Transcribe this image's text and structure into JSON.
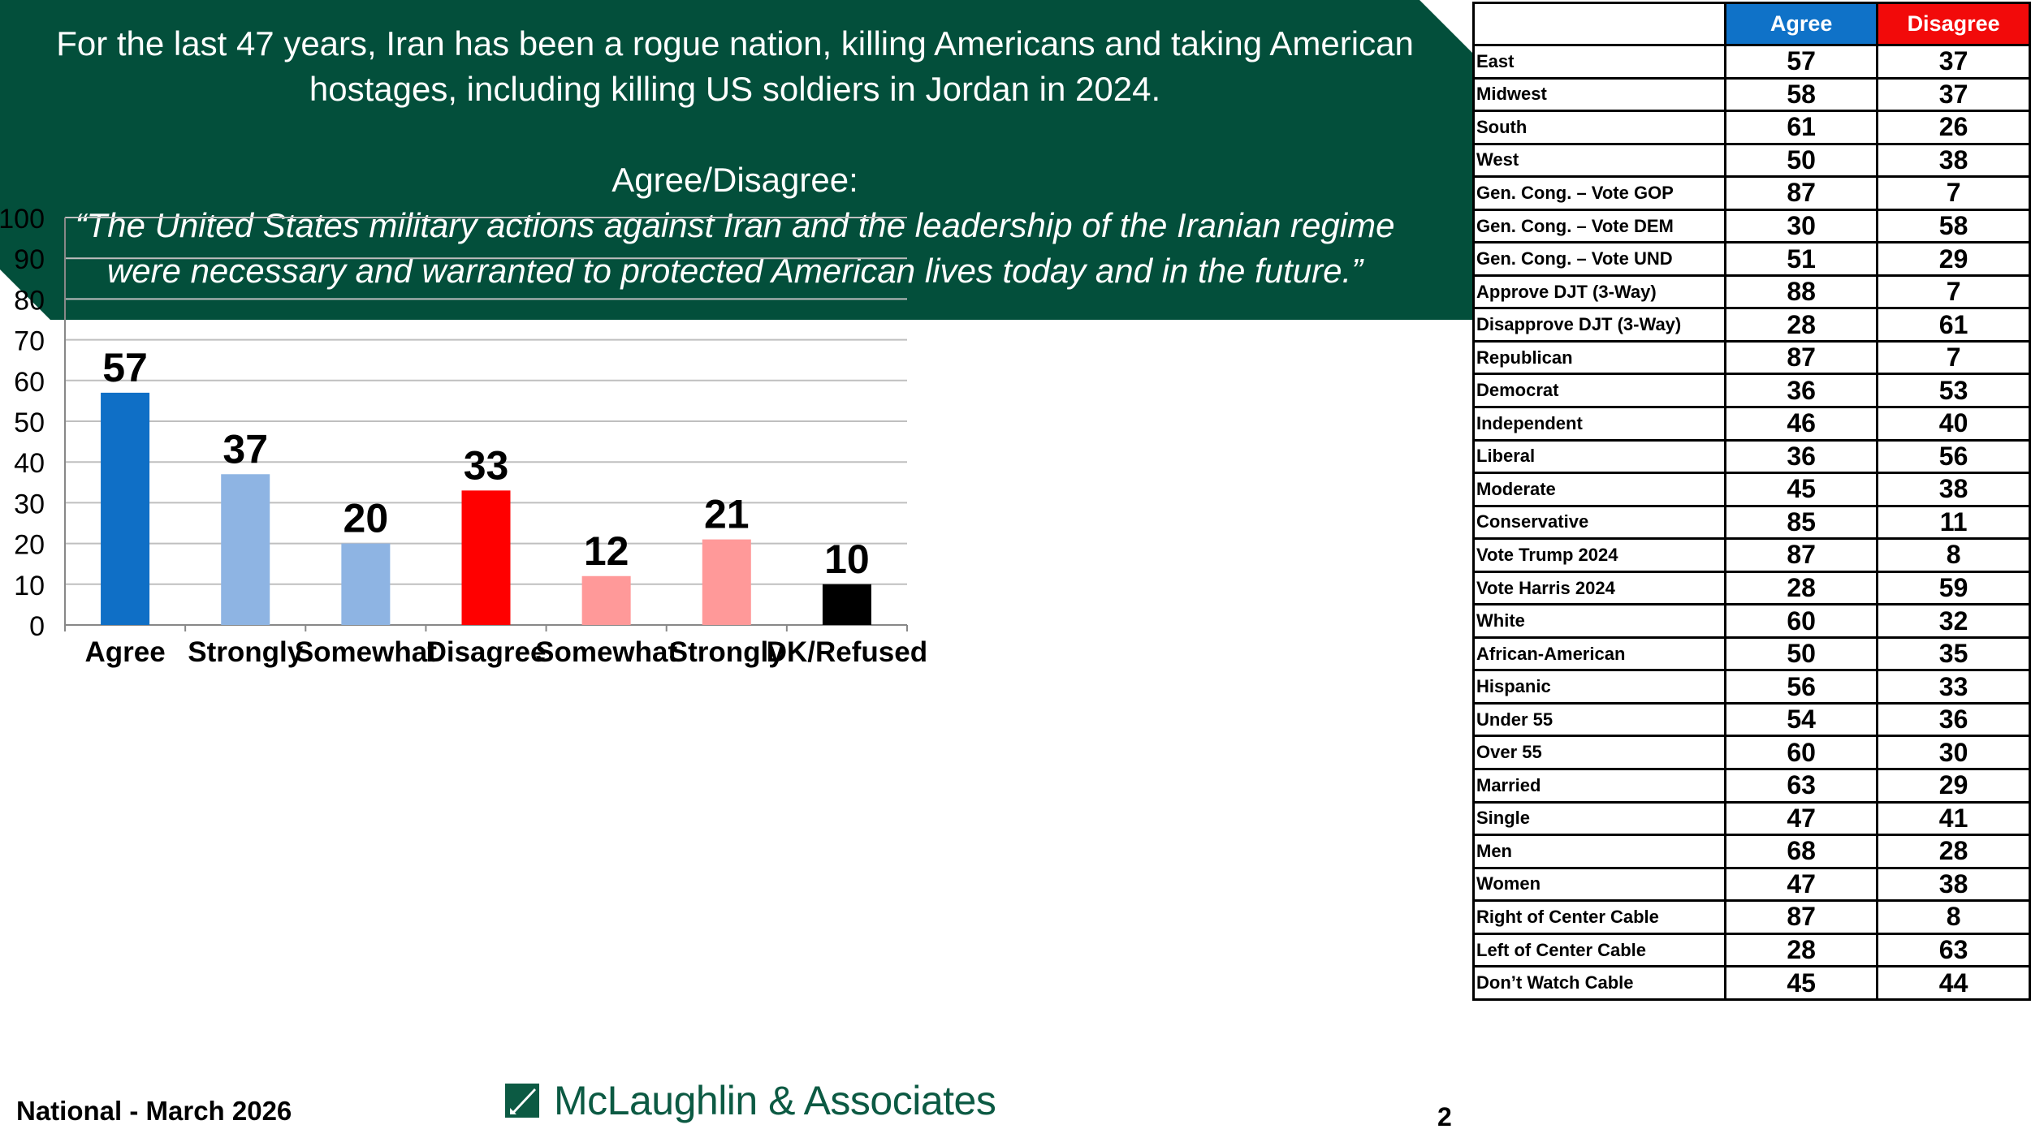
{
  "banner": {
    "line1": "For the last 47 years, Iran has been a rogue nation, killing Americans and taking American",
    "line2": "hostages, including killing US soldiers in Jordan in 2024.",
    "question_label": "Agree/Disagree:",
    "quote1": "“The United States military actions against Iran and the leadership of the Iranian regime",
    "quote2": "were necessary and warranted to protected American lives today and in the future.”"
  },
  "chart_data": {
    "type": "bar",
    "categories": [
      "Agree",
      "Strongly",
      "Somewhat",
      "Disagree",
      "Somewhat",
      "Strongly",
      "DK/Refused"
    ],
    "values": [
      57,
      37,
      20,
      33,
      12,
      21,
      10
    ],
    "colors": [
      "#0f6fc6",
      "#8eb4e3",
      "#8eb4e3",
      "#ff0000",
      "#ff9999",
      "#ff9999",
      "#000000"
    ],
    "ylim": [
      0,
      100
    ],
    "yticks": [
      0,
      10,
      20,
      30,
      40,
      50,
      60,
      70,
      80,
      90,
      100
    ],
    "grid": true,
    "title": "",
    "xlabel": "",
    "ylabel": ""
  },
  "footer": {
    "left": "National - March 2026",
    "logo_text": "McLaughlin & Associates",
    "page": "2"
  },
  "table": {
    "headers": [
      "",
      "Agree",
      "Disagree"
    ],
    "rows": [
      {
        "label": "East",
        "agree": 57,
        "disagree": 37
      },
      {
        "label": "Midwest",
        "agree": 58,
        "disagree": 37
      },
      {
        "label": "South",
        "agree": 61,
        "disagree": 26
      },
      {
        "label": "West",
        "agree": 50,
        "disagree": 38
      },
      {
        "label": "Gen. Cong. – Vote GOP",
        "agree": 87,
        "disagree": 7
      },
      {
        "label": "Gen. Cong. – Vote DEM",
        "agree": 30,
        "disagree": 58
      },
      {
        "label": "Gen. Cong. – Vote UND",
        "agree": 51,
        "disagree": 29
      },
      {
        "label": "Approve DJT (3-Way)",
        "agree": 88,
        "disagree": 7
      },
      {
        "label": "Disapprove DJT (3-Way)",
        "agree": 28,
        "disagree": 61
      },
      {
        "label": "Republican",
        "agree": 87,
        "disagree": 7
      },
      {
        "label": "Democrat",
        "agree": 36,
        "disagree": 53
      },
      {
        "label": "Independent",
        "agree": 46,
        "disagree": 40
      },
      {
        "label": "Liberal",
        "agree": 36,
        "disagree": 56
      },
      {
        "label": "Moderate",
        "agree": 45,
        "disagree": 38
      },
      {
        "label": "Conservative",
        "agree": 85,
        "disagree": 11
      },
      {
        "label": "Vote Trump 2024",
        "agree": 87,
        "disagree": 8
      },
      {
        "label": "Vote Harris 2024",
        "agree": 28,
        "disagree": 59
      },
      {
        "label": "White",
        "agree": 60,
        "disagree": 32
      },
      {
        "label": "African-American",
        "agree": 50,
        "disagree": 35
      },
      {
        "label": "Hispanic",
        "agree": 56,
        "disagree": 33
      },
      {
        "label": "Under 55",
        "agree": 54,
        "disagree": 36
      },
      {
        "label": "Over 55",
        "agree": 60,
        "disagree": 30
      },
      {
        "label": "Married",
        "agree": 63,
        "disagree": 29
      },
      {
        "label": "Single",
        "agree": 47,
        "disagree": 41
      },
      {
        "label": "Men",
        "agree": 68,
        "disagree": 28
      },
      {
        "label": "Women",
        "agree": 47,
        "disagree": 38
      },
      {
        "label": "Right of Center Cable",
        "agree": 87,
        "disagree": 8
      },
      {
        "label": "Left of Center Cable",
        "agree": 28,
        "disagree": 63
      },
      {
        "label": "Don’t Watch Cable",
        "agree": 45,
        "disagree": 44
      }
    ]
  },
  "colors": {
    "banner": "#034f3b",
    "agree_header": "#0f72c8",
    "disagree_header": "#f20a0a"
  }
}
